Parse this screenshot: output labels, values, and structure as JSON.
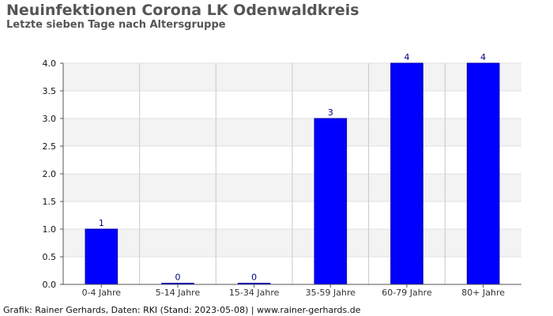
{
  "title": "Neuinfektionen Corona LK Odenwaldkreis",
  "subtitle": "Letzte sieben Tage nach Altersgruppe",
  "footer": "Grafik: Rainer Gerhards, Daten: RKI (Stand: 2023-05-08) | www.rainer-gerhards.de",
  "chart_data": {
    "type": "bar",
    "categories": [
      "0-4 Jahre",
      "5-14 Jahre",
      "15-34 Jahre",
      "35-59 Jahre",
      "60-79 Jahre",
      "80+ Jahre"
    ],
    "values": [
      1,
      0,
      0,
      3,
      4,
      4
    ],
    "data_labels": [
      "1",
      "0",
      "0",
      "3",
      "4",
      "4"
    ],
    "title": "Neuinfektionen Corona LK Odenwaldkreis",
    "subtitle": "Letzte sieben Tage nach Altersgruppe",
    "xlabel": "",
    "ylabel": "",
    "ylim": [
      0,
      4
    ],
    "yticks": [
      "0.0",
      "0.5",
      "1.0",
      "1.5",
      "2.0",
      "2.5",
      "3.0",
      "3.5",
      "4.0"
    ],
    "grid": true,
    "bar_color": "#0000ff",
    "band_color": "#f3f3f3",
    "grid_color": "#c8c8c8",
    "label_color": "#000080"
  }
}
